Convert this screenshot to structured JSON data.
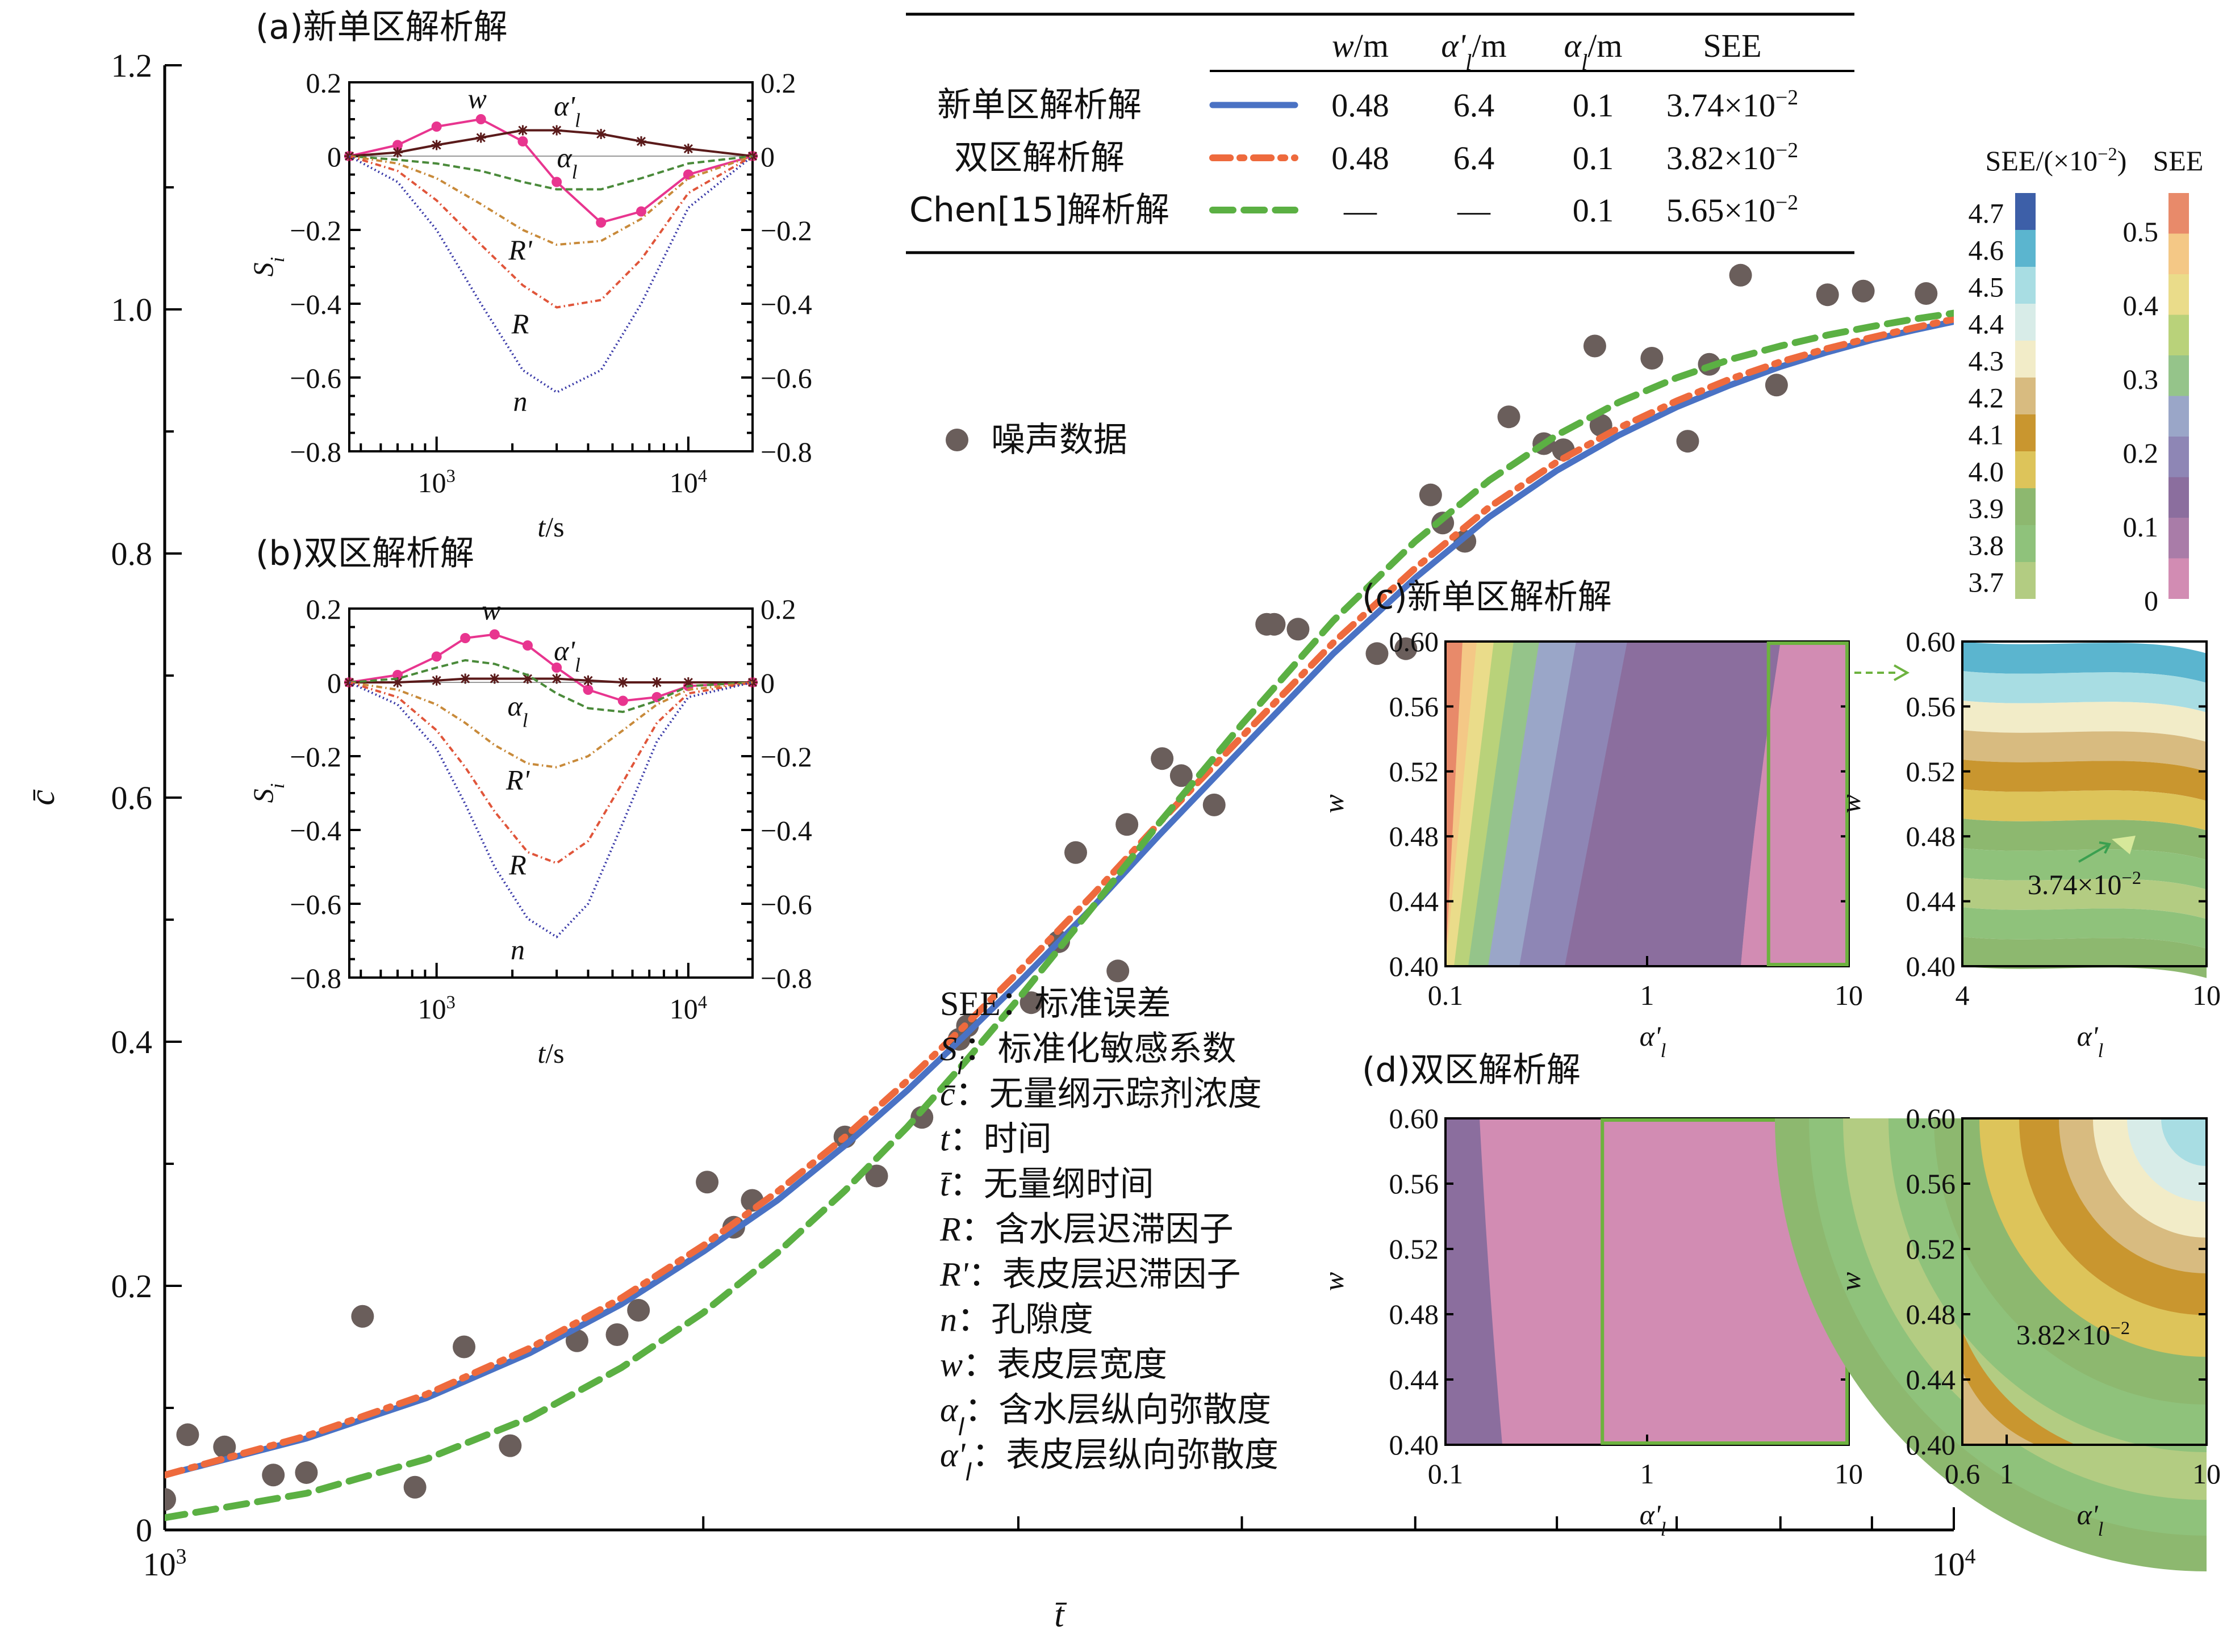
{
  "chart_data": [
    {
      "id": "main",
      "type": "line",
      "xlabel": "t̄",
      "ylabel": "c̄",
      "x_scale": "log",
      "xlim": [
        1000,
        10000
      ],
      "ylim": [
        0,
        1.2
      ],
      "x_tick_labels": [
        "10^3",
        "10^4"
      ],
      "y_tick_labels": [
        "0",
        "0.2",
        "0.4",
        "0.6",
        "0.8",
        "1.0",
        "1.2"
      ],
      "y_ticks": [
        0,
        0.2,
        0.4,
        0.6,
        0.8,
        1.0,
        1.2
      ],
      "series": [
        {
          "name": "新单区解析解",
          "color": "#4a72c4",
          "style": "solid",
          "x": [
            1000,
            1200,
            1400,
            1600,
            1800,
            2000,
            2200,
            2400,
            2600,
            2800,
            3000,
            3300,
            3600,
            4000,
            4500,
            5000,
            5500,
            6000,
            6500,
            7000,
            7500,
            8000,
            8500,
            9000,
            9500,
            10000
          ],
          "y": [
            0.045,
            0.075,
            0.108,
            0.145,
            0.185,
            0.228,
            0.27,
            0.315,
            0.36,
            0.405,
            0.448,
            0.51,
            0.57,
            0.64,
            0.718,
            0.78,
            0.83,
            0.868,
            0.897,
            0.92,
            0.938,
            0.953,
            0.965,
            0.975,
            0.983,
            0.99
          ]
        },
        {
          "name": "双区解析解",
          "color": "#ee6a3d",
          "style": "dashdot",
          "x": [
            1000,
            1200,
            1400,
            1600,
            1800,
            2000,
            2200,
            2400,
            2600,
            2800,
            3000,
            3300,
            3600,
            4000,
            4500,
            5000,
            5500,
            6000,
            6500,
            7000,
            7500,
            8000,
            8500,
            9000,
            9500,
            10000
          ],
          "y": [
            0.045,
            0.077,
            0.111,
            0.149,
            0.19,
            0.233,
            0.277,
            0.322,
            0.368,
            0.413,
            0.457,
            0.52,
            0.58,
            0.65,
            0.727,
            0.788,
            0.838,
            0.875,
            0.903,
            0.925,
            0.943,
            0.957,
            0.968,
            0.977,
            0.985,
            0.992
          ]
        },
        {
          "name": "Chen[15]解析解",
          "color": "#5bb043",
          "style": "dashed",
          "x": [
            1000,
            1200,
            1400,
            1600,
            1800,
            2000,
            2200,
            2400,
            2600,
            2800,
            3000,
            3300,
            3600,
            4000,
            4500,
            5000,
            5500,
            6000,
            6500,
            7000,
            7500,
            8000,
            8500,
            9000,
            9500,
            10000
          ],
          "y": [
            0.01,
            0.03,
            0.058,
            0.092,
            0.133,
            0.178,
            0.227,
            0.278,
            0.33,
            0.383,
            0.435,
            0.51,
            0.58,
            0.66,
            0.745,
            0.81,
            0.86,
            0.897,
            0.924,
            0.944,
            0.959,
            0.97,
            0.979,
            0.986,
            0.992,
            0.997
          ]
        }
      ],
      "scatter": {
        "name": "噪声数据",
        "color": "#6a5e5b",
        "x": [
          1000,
          1030,
          1080,
          1150,
          1200,
          1290,
          1380,
          1470,
          1560,
          1700,
          1790,
          1840,
          2010,
          2080,
          2130,
          2400,
          2500,
          2650,
          2780,
          2810,
          3050,
          3160,
          3230,
          3410,
          3450,
          3610,
          3700,
          3860,
          4130,
          4170,
          4300,
          4760,
          4940,
          5100,
          5180,
          5330,
          5640,
          5900,
          6050,
          6300,
          6350,
          6780,
          7100,
          7300,
          7600,
          7960,
          8500,
          8900,
          9650
        ],
        "y": [
          0.025,
          0.078,
          0.068,
          0.045,
          0.047,
          0.175,
          0.035,
          0.15,
          0.069,
          0.155,
          0.16,
          0.18,
          0.285,
          0.248,
          0.27,
          0.322,
          0.29,
          0.338,
          0.402,
          0.413,
          0.432,
          0.482,
          0.555,
          0.458,
          0.578,
          0.632,
          0.618,
          0.594,
          0.742,
          0.742,
          0.738,
          0.718,
          0.722,
          0.848,
          0.825,
          0.81,
          0.912,
          0.89,
          0.885,
          0.97,
          0.905,
          0.96,
          0.892,
          0.955,
          1.028,
          0.938,
          1.012,
          1.015,
          1.013
        ]
      },
      "legend": {
        "headers": [
          "w/m",
          "α'l/m",
          "αl/m",
          "SEE"
        ],
        "rows": [
          {
            "label": "新单区解析解",
            "values": [
              "0.48",
              "6.4",
              "0.1",
              "3.74×10−2"
            ]
          },
          {
            "label": "双区解析解",
            "values": [
              "0.48",
              "6.4",
              "0.1",
              "3.82×10−2"
            ]
          },
          {
            "label": "Chen[15]解析解",
            "values": [
              "—",
              "—",
              "0.1",
              "5.65×10−2"
            ]
          }
        ]
      },
      "scatter_label": "噪声数据"
    },
    {
      "id": "inset_a",
      "type": "line",
      "title": "(a)新单区解析解",
      "xlabel": "t/s",
      "ylabel": "Si",
      "x_scale": "log",
      "xlim": [
        450,
        18000
      ],
      "ylim": [
        -0.8,
        0.2
      ],
      "y_tick_labels": [
        "0.2",
        "0",
        "−0.2",
        "−0.4",
        "−0.6",
        "−0.8"
      ],
      "y_ticks": [
        0.2,
        0,
        -0.2,
        -0.4,
        -0.6,
        -0.8
      ],
      "x_tick_labels": [
        "10^3",
        "10^4"
      ],
      "series": [
        {
          "name": "w",
          "color": "#e8358f",
          "marker": "dot",
          "x": [
            450,
            700,
            1000,
            1500,
            2200,
            3000,
            4500,
            6500,
            10000,
            18000
          ],
          "y": [
            0,
            0.03,
            0.08,
            0.1,
            0.04,
            -0.07,
            -0.18,
            -0.15,
            -0.05,
            0
          ]
        },
        {
          "name": "α'l",
          "color": "#5a1a1a",
          "marker": "star",
          "x": [
            450,
            700,
            1000,
            1500,
            2200,
            3000,
            4500,
            6500,
            10000,
            18000
          ],
          "y": [
            0,
            0.01,
            0.03,
            0.05,
            0.07,
            0.07,
            0.06,
            0.04,
            0.02,
            0
          ]
        },
        {
          "name": "αl",
          "color": "#4a8a3a",
          "style": "dashed",
          "x": [
            450,
            700,
            1000,
            1500,
            2200,
            3000,
            4500,
            6500,
            10000,
            18000
          ],
          "y": [
            0,
            -0.01,
            -0.02,
            -0.04,
            -0.07,
            -0.09,
            -0.09,
            -0.06,
            -0.02,
            0
          ]
        },
        {
          "name": "R'",
          "color": "#c88a3a",
          "style": "dashdot",
          "x": [
            450,
            700,
            1000,
            1500,
            2200,
            3000,
            4500,
            6500,
            10000,
            18000
          ],
          "y": [
            0,
            -0.02,
            -0.06,
            -0.13,
            -0.2,
            -0.24,
            -0.23,
            -0.17,
            -0.06,
            0
          ]
        },
        {
          "name": "R",
          "color": "#e0553a",
          "style": "dashdot",
          "x": [
            450,
            700,
            1000,
            1500,
            2200,
            3000,
            4500,
            6500,
            10000,
            18000
          ],
          "y": [
            0,
            -0.04,
            -0.12,
            -0.24,
            -0.35,
            -0.41,
            -0.39,
            -0.28,
            -0.1,
            0
          ]
        },
        {
          "name": "n",
          "color": "#3a3aa8",
          "style": "dotted",
          "x": [
            450,
            700,
            1000,
            1500,
            2200,
            3000,
            4500,
            6500,
            10000,
            18000
          ],
          "y": [
            0,
            -0.07,
            -0.2,
            -0.4,
            -0.58,
            -0.64,
            -0.58,
            -0.4,
            -0.14,
            0
          ]
        }
      ]
    },
    {
      "id": "inset_b",
      "type": "line",
      "title": "(b)双区解析解",
      "xlabel": "t/s",
      "ylabel": "Si",
      "x_scale": "log",
      "xlim": [
        450,
        18000
      ],
      "ylim": [
        -0.8,
        0.2
      ],
      "y_tick_labels": [
        "0.2",
        "0",
        "−0.2",
        "−0.4",
        "−0.6",
        "−0.8"
      ],
      "y_ticks": [
        0.2,
        0,
        -0.2,
        -0.4,
        -0.6,
        -0.8
      ],
      "x_tick_labels": [
        "10^3",
        "10^4"
      ],
      "series": [
        {
          "name": "w",
          "color": "#e8358f",
          "marker": "dot",
          "x": [
            450,
            700,
            1000,
            1300,
            1700,
            2300,
            3000,
            4000,
            5500,
            7500,
            10000,
            18000
          ],
          "y": [
            0,
            0.02,
            0.07,
            0.12,
            0.13,
            0.1,
            0.04,
            -0.02,
            -0.05,
            -0.04,
            -0.01,
            0
          ]
        },
        {
          "name": "α'l",
          "color": "#5a1a1a",
          "marker": "star",
          "x": [
            450,
            700,
            1000,
            1300,
            1700,
            2300,
            3000,
            4000,
            5500,
            7500,
            10000,
            18000
          ],
          "y": [
            0,
            0,
            0.005,
            0.01,
            0.01,
            0.01,
            0.01,
            0.005,
            0,
            0,
            0,
            0
          ]
        },
        {
          "name": "αl",
          "color": "#4a8a3a",
          "style": "dashed",
          "x": [
            450,
            700,
            1000,
            1300,
            1700,
            2300,
            3000,
            4000,
            5500,
            7500,
            10000,
            18000
          ],
          "y": [
            0,
            0.01,
            0.04,
            0.06,
            0.05,
            0.02,
            -0.03,
            -0.07,
            -0.08,
            -0.05,
            -0.01,
            0
          ]
        },
        {
          "name": "R'",
          "color": "#c88a3a",
          "style": "dashdot",
          "x": [
            450,
            700,
            1000,
            1300,
            1700,
            2300,
            3000,
            4000,
            5500,
            7500,
            10000,
            18000
          ],
          "y": [
            0,
            -0.02,
            -0.06,
            -0.11,
            -0.17,
            -0.22,
            -0.23,
            -0.2,
            -0.13,
            -0.06,
            -0.02,
            0
          ]
        },
        {
          "name": "R",
          "color": "#e0553a",
          "style": "dashdot",
          "x": [
            450,
            700,
            1000,
            1300,
            1700,
            2300,
            3000,
            4000,
            5500,
            7500,
            10000,
            18000
          ],
          "y": [
            0,
            -0.04,
            -0.13,
            -0.23,
            -0.35,
            -0.46,
            -0.49,
            -0.43,
            -0.27,
            -0.11,
            -0.03,
            0
          ]
        },
        {
          "name": "n",
          "color": "#3a3aa8",
          "style": "dotted",
          "x": [
            450,
            700,
            1000,
            1300,
            1700,
            2300,
            3000,
            4000,
            5500,
            7500,
            10000,
            18000
          ],
          "y": [
            0,
            -0.06,
            -0.18,
            -0.33,
            -0.5,
            -0.64,
            -0.69,
            -0.6,
            -0.38,
            -0.16,
            -0.04,
            0
          ]
        }
      ]
    },
    {
      "id": "heatmap_c",
      "type": "heatmap",
      "title": "(c)新单区解析解",
      "xlabel": "α'l",
      "ylabel": "w",
      "left_xlim": [
        0.1,
        10
      ],
      "left_x_tick_labels": [
        "0.1",
        "1",
        "10"
      ],
      "right_xlim": [
        4,
        10
      ],
      "right_x_tick_labels": [
        "4",
        "10"
      ],
      "ylim": [
        0.4,
        0.6
      ],
      "y_tick_labels": [
        "0.60",
        "0.56",
        "0.52",
        "0.48",
        "0.44",
        "0.40"
      ],
      "annotation": "3.74×10−2"
    },
    {
      "id": "heatmap_d",
      "type": "heatmap",
      "title": "(d)双区解析解",
      "xlabel": "α'l",
      "ylabel": "w",
      "left_xlim": [
        0.1,
        10
      ],
      "left_x_tick_labels": [
        "0.1",
        "1",
        "10"
      ],
      "right_xlim": [
        0.6,
        10
      ],
      "right_x_tick_labels": [
        "0.6",
        "1",
        "10"
      ],
      "ylim": [
        0.4,
        0.6
      ],
      "y_tick_labels": [
        "0.60",
        "0.56",
        "0.52",
        "0.48",
        "0.44",
        "0.40"
      ],
      "annotation": "3.82×10−2"
    },
    {
      "id": "colorbars",
      "type": "heatmap",
      "colorbar_left": {
        "title": "SEE/(×10−2)",
        "labels": [
          "4.7",
          "4.6",
          "4.5",
          "4.4",
          "4.3",
          "4.2",
          "4.1",
          "4.0",
          "3.9",
          "3.8",
          "3.7"
        ],
        "colors": [
          "#3d5fa8",
          "#5bb5cf",
          "#a8dde3",
          "#d8ece8",
          "#f2ecc8",
          "#d8bb80",
          "#c9962f",
          "#ddc45a",
          "#8db86f",
          "#8fc27b",
          "#b3cc82"
        ]
      },
      "colorbar_right": {
        "title": "SEE",
        "labels": [
          "0.5",
          "0.4",
          "0.3",
          "0.2",
          "0.1",
          "0"
        ],
        "colors": [
          "#e88a6a",
          "#f4c886",
          "#eadc8a",
          "#b9d27a",
          "#95c48a",
          "#9aa6c8",
          "#8e86b5",
          "#8b6e9e",
          "#a97ca8",
          "#d28cb3"
        ]
      }
    }
  ],
  "glossary": [
    {
      "sym": "SEE",
      "text": "：标准误差"
    },
    {
      "sym": "Si",
      "text": "：标准化敏感系数"
    },
    {
      "sym": "c̄",
      "text": "：无量纲示踪剂浓度"
    },
    {
      "sym": "t",
      "text": "：时间"
    },
    {
      "sym": "t̄",
      "text": "：无量纲时间"
    },
    {
      "sym": "R",
      "text": "：含水层迟滞因子"
    },
    {
      "sym": "R'",
      "text": "：表皮层迟滞因子"
    },
    {
      "sym": "n",
      "text": "：孔隙度"
    },
    {
      "sym": "w",
      "text": "：表皮层宽度"
    },
    {
      "sym": "αl",
      "text": "：含水层纵向弥散度"
    },
    {
      "sym": "α'l",
      "text": "：表皮层纵向弥散度"
    }
  ]
}
